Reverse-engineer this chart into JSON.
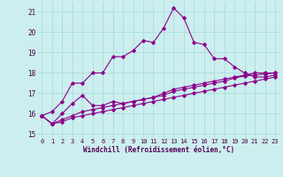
{
  "xlabel": "Windchill (Refroidissement éolien,°C)",
  "x_ticks": [
    0,
    1,
    2,
    3,
    4,
    5,
    6,
    7,
    8,
    9,
    10,
    11,
    12,
    13,
    14,
    15,
    16,
    17,
    18,
    19,
    20,
    21,
    22,
    23
  ],
  "ylim": [
    14.8,
    21.5
  ],
  "xlim": [
    -0.5,
    23.5
  ],
  "yticks": [
    15,
    16,
    17,
    18,
    19,
    20,
    21
  ],
  "line_color": "#8b008b",
  "bg_color": "#cceeee",
  "grid_color": "#aadddd",
  "series1": [
    15.9,
    16.1,
    16.6,
    17.5,
    17.5,
    18.0,
    18.0,
    18.8,
    18.8,
    19.1,
    19.6,
    19.5,
    20.2,
    21.2,
    20.7,
    19.5,
    19.4,
    18.7,
    18.7,
    18.3,
    18.0,
    17.8,
    17.8,
    17.9
  ],
  "series2": [
    15.9,
    15.5,
    16.0,
    16.5,
    16.9,
    16.4,
    16.4,
    16.6,
    16.5,
    16.6,
    16.7,
    16.8,
    17.0,
    17.2,
    17.3,
    17.4,
    17.5,
    17.6,
    17.7,
    17.8,
    17.9,
    18.0,
    18.0,
    18.0
  ],
  "series3": [
    15.9,
    15.5,
    15.7,
    15.9,
    16.1,
    16.2,
    16.3,
    16.4,
    16.5,
    16.6,
    16.7,
    16.8,
    16.9,
    17.1,
    17.2,
    17.3,
    17.4,
    17.5,
    17.6,
    17.75,
    17.85,
    17.9,
    17.95,
    18.0
  ],
  "series4": [
    15.9,
    15.5,
    15.6,
    15.8,
    15.9,
    16.0,
    16.1,
    16.2,
    16.3,
    16.4,
    16.5,
    16.6,
    16.7,
    16.8,
    16.9,
    17.0,
    17.1,
    17.2,
    17.3,
    17.4,
    17.5,
    17.6,
    17.7,
    17.8
  ]
}
